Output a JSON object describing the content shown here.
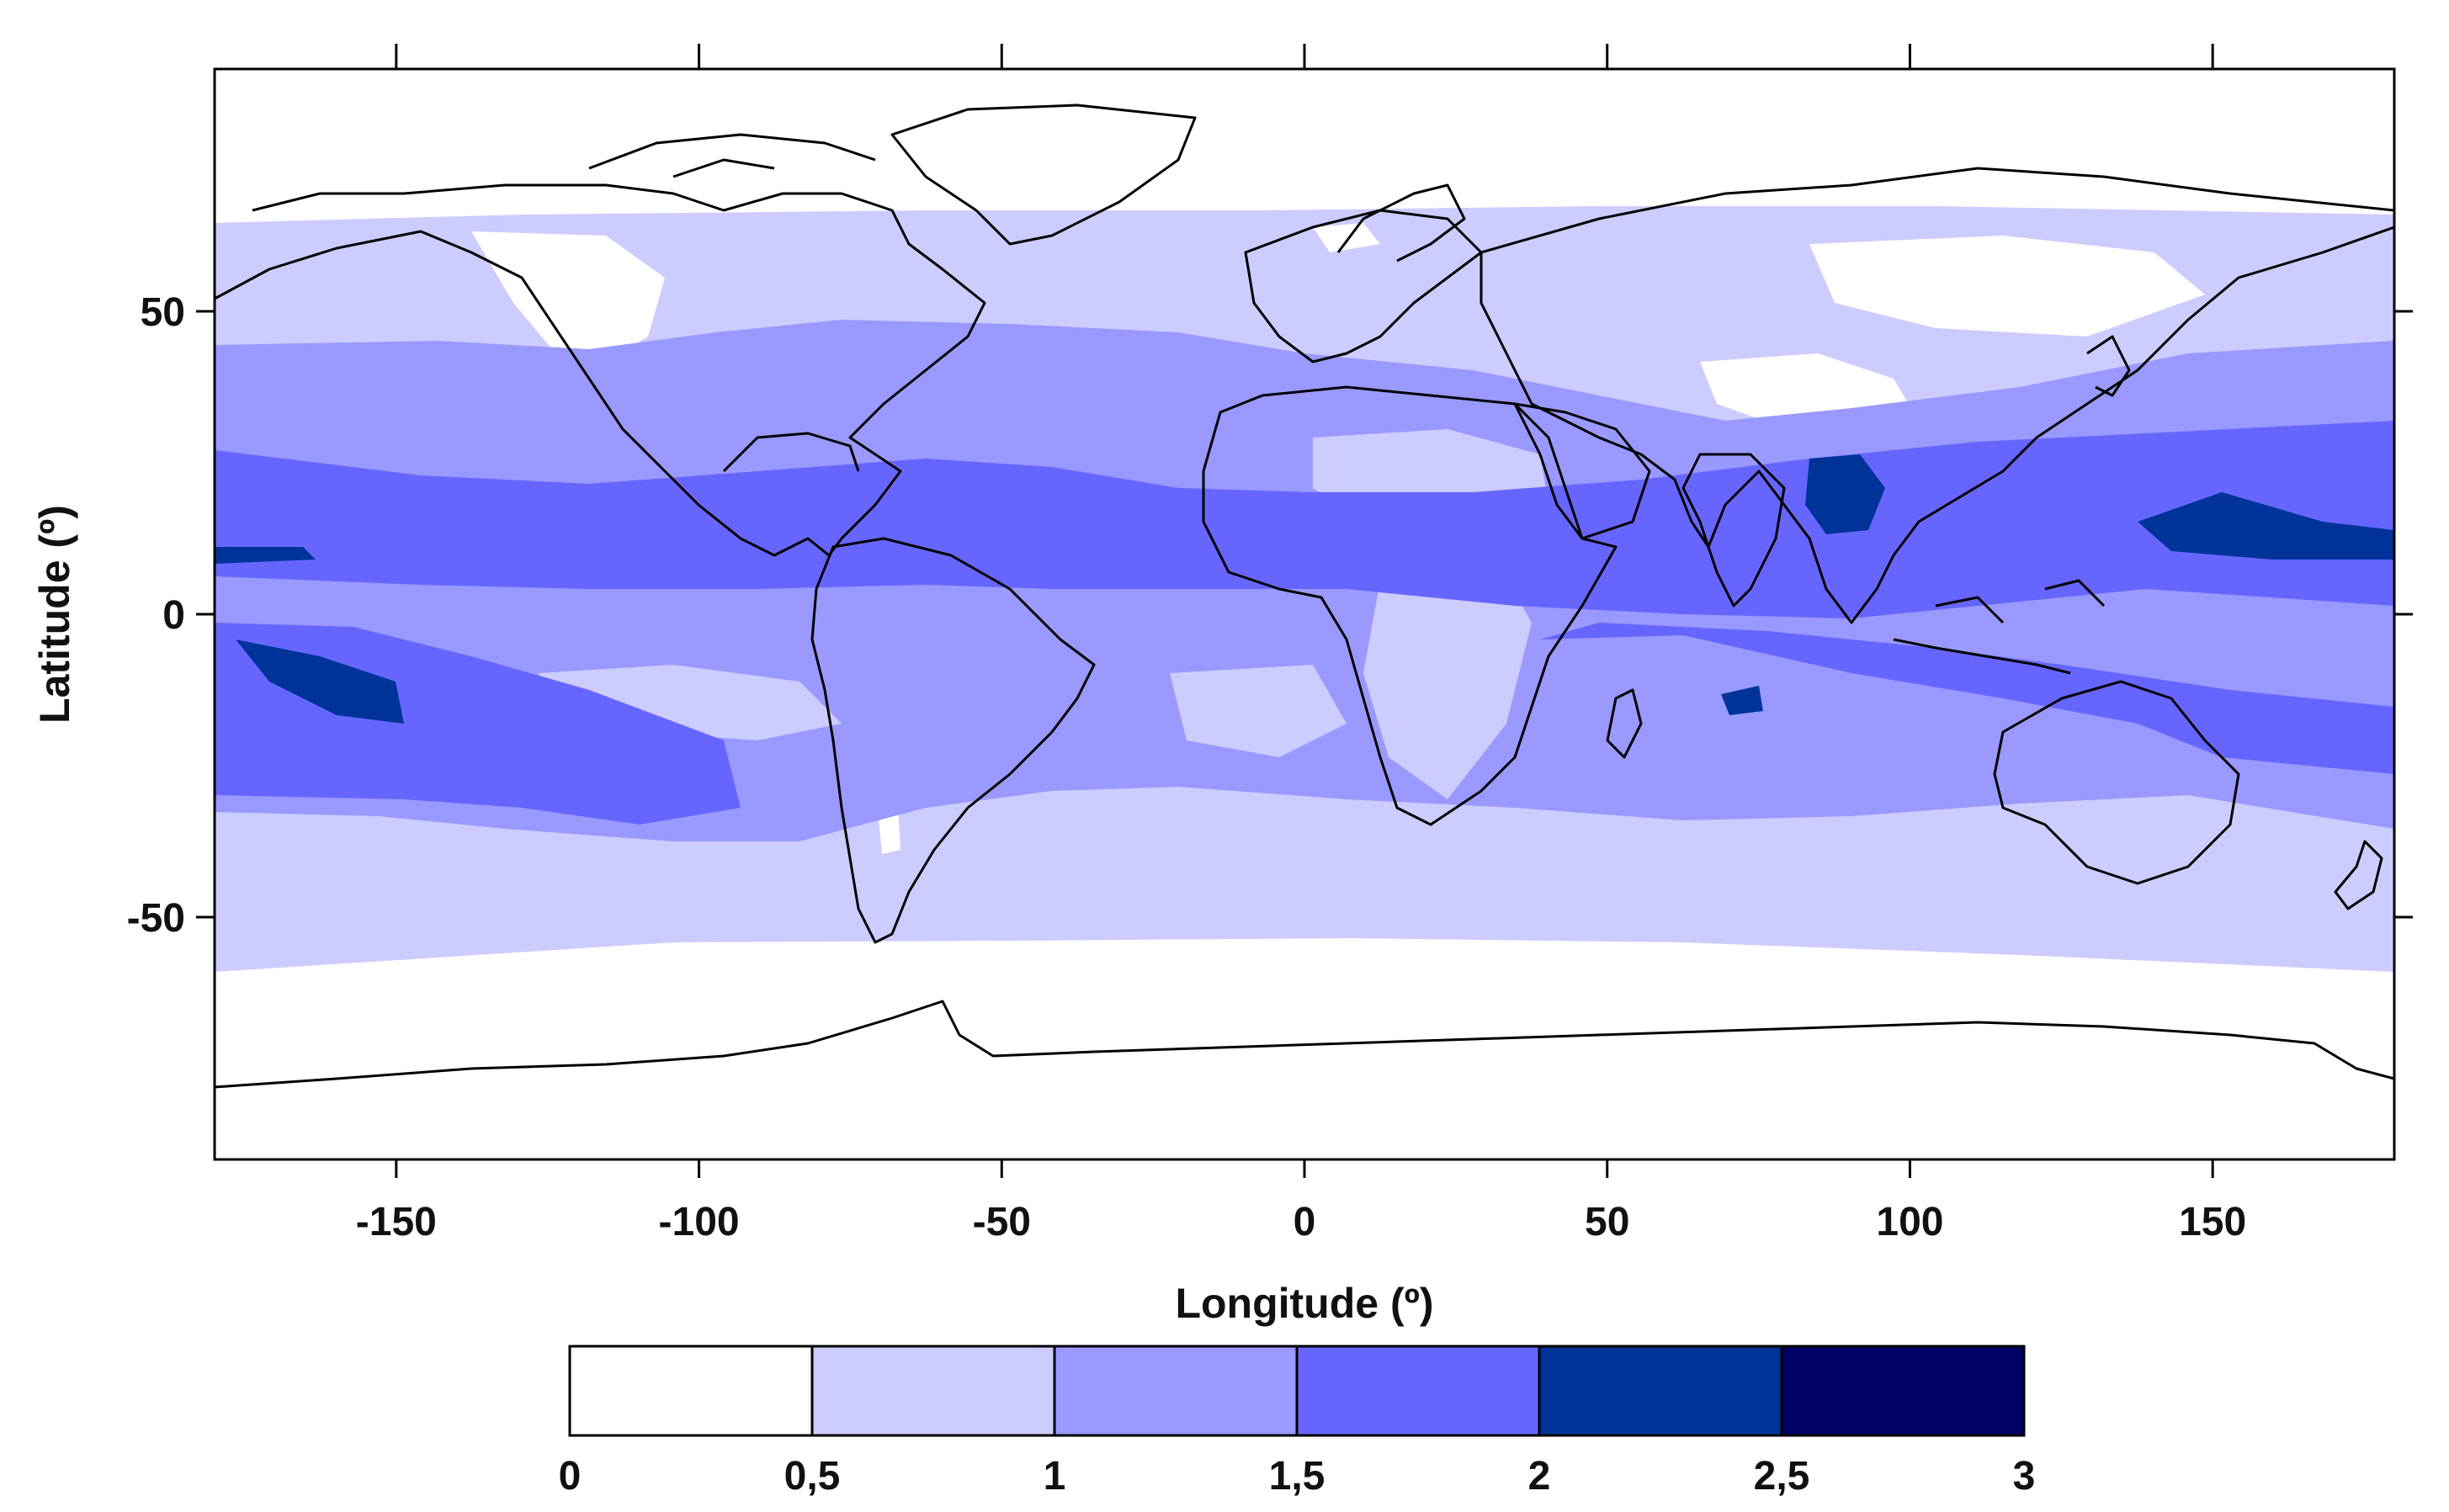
{
  "map": {
    "x_axis": {
      "label": "Longitude (º)",
      "range": [
        -180,
        180
      ],
      "ticks": [
        -150,
        -100,
        -50,
        0,
        50,
        100,
        150
      ],
      "tick_labels": [
        "-150",
        "-100",
        "-50",
        "0",
        "50",
        "100",
        "150"
      ]
    },
    "y_axis": {
      "label": "Latitude (º)",
      "range": [
        -90,
        90
      ],
      "ticks": [
        50,
        0,
        -50
      ],
      "tick_labels": [
        "50",
        "0",
        "-50"
      ]
    },
    "field_type": "filled-contour",
    "projection": "equirectangular",
    "coastlines": true,
    "grid": false
  },
  "colorbar": {
    "position": "bottom",
    "labels": [
      "0",
      "0,5",
      "1",
      "1,5",
      "2",
      "2,5",
      "3"
    ],
    "bins": [
      {
        "from": 0,
        "to": 0.5,
        "color": "#ffffff"
      },
      {
        "from": 0.5,
        "to": 1,
        "color": "#ccccff"
      },
      {
        "from": 1,
        "to": 1.5,
        "color": "#9999ff"
      },
      {
        "from": 1.5,
        "to": 2,
        "color": "#6666ff"
      },
      {
        "from": 2,
        "to": 2.5,
        "color": "#003399"
      },
      {
        "from": 2.5,
        "to": 3,
        "color": "#000066"
      }
    ]
  },
  "chart_data": {
    "type": "heatmap",
    "title": "",
    "xlabel": "Longitude (º)",
    "ylabel": "Latitude (º)",
    "xlim": [
      -180,
      180
    ],
    "ylim": [
      -90,
      90
    ],
    "color_scale": [
      0,
      3
    ],
    "zones": [
      {
        "name": "antarctic",
        "lat": [
          -90,
          -60
        ],
        "value": 0.25
      },
      {
        "name": "southern-mid",
        "lat": [
          -60,
          -38
        ],
        "value": 0.75
      },
      {
        "name": "south-subtropics",
        "lat": [
          -38,
          -8
        ],
        "value": 1.25
      },
      {
        "name": "tropics",
        "lat": [
          -8,
          27
        ],
        "value": 1.75
      },
      {
        "name": "north-subtropics",
        "lat": [
          27,
          50
        ],
        "value": 1.25
      },
      {
        "name": "northern-mid",
        "lat": [
          50,
          65
        ],
        "value": 0.75
      },
      {
        "name": "arctic",
        "lat": [
          65,
          90
        ],
        "value": 0.25
      }
    ],
    "maxima": [
      {
        "name": "bay-of-bengal",
        "lon": [
          82,
          98
        ],
        "lat": [
          15,
          26
        ],
        "value": 2.25
      },
      {
        "name": "west-pacific",
        "lon": [
          140,
          180
        ],
        "lat": [
          10,
          20
        ],
        "value": 2.25
      },
      {
        "name": "south-pacific",
        "lon": [
          -165,
          -140
        ],
        "lat": [
          -18,
          -10
        ],
        "value": 2.25
      },
      {
        "name": "indian-ocean",
        "lon": [
          70,
          100
        ],
        "lat": [
          -17,
          -14
        ],
        "value": 2.25
      }
    ]
  }
}
